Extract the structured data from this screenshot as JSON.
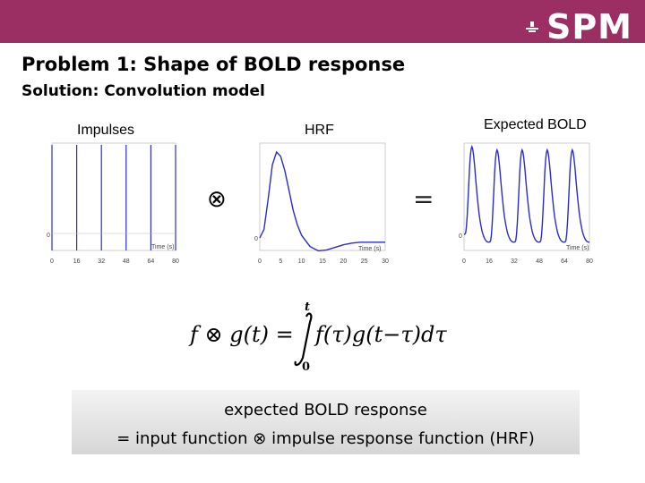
{
  "header": {
    "logo_text": "SPM",
    "accent_color": "#9b2f63"
  },
  "slide": {
    "title": "Problem 1: Shape of BOLD response",
    "subtitle": "Solution: Convolution model"
  },
  "panels": [
    {
      "label": "Impulses",
      "xlabel": "Time (s)",
      "y_zero_label": "0",
      "x_ticks": [
        "0",
        "16",
        "32",
        "48",
        "64",
        "80"
      ],
      "xlim": [
        0,
        80
      ],
      "impulse_times": [
        0,
        16,
        32,
        48,
        64,
        80
      ]
    },
    {
      "label": "HRF",
      "xlabel": "Time (s)",
      "y_zero_label": "0",
      "x_ticks": [
        "0",
        "5",
        "10",
        "15",
        "20",
        "25",
        "30"
      ],
      "xlim": [
        0,
        30
      ]
    },
    {
      "label": "Expected BOLD",
      "xlabel": "Time (s)",
      "y_zero_label": "0",
      "x_ticks": [
        "0",
        "16",
        "32",
        "48",
        "64",
        "80"
      ],
      "xlim": [
        0,
        80
      ]
    }
  ],
  "operators": {
    "convolve": "⊗",
    "equals": "="
  },
  "formula": {
    "lhs": "f ⊗ g(t) =",
    "upper_limit": "t",
    "lower_limit": "0",
    "integrand": "f(τ)g(t−τ)dτ"
  },
  "summary": {
    "line1": "expected BOLD response",
    "line2": "= input function ⊗ impulse response function (HRF)"
  },
  "chart_data": [
    {
      "type": "line",
      "xlabel": "Time (s)",
      "xlim": [
        0,
        80
      ],
      "impulses_at": [
        0,
        16,
        32,
        48,
        64,
        80
      ]
    },
    {
      "type": "line",
      "xlabel": "Time (s)",
      "xlim": [
        0,
        30
      ],
      "x": [
        0,
        1,
        2,
        3,
        4,
        5,
        6,
        7,
        8,
        9,
        10,
        12,
        14,
        16,
        18,
        20,
        22,
        24,
        26,
        28,
        30
      ],
      "y": [
        0.0,
        0.1,
        0.45,
        0.85,
        1.0,
        0.95,
        0.78,
        0.55,
        0.32,
        0.15,
        0.03,
        -0.1,
        -0.15,
        -0.14,
        -0.11,
        -0.08,
        -0.06,
        -0.05,
        -0.05,
        -0.05,
        -0.05
      ]
    },
    {
      "type": "line",
      "xlabel": "Time (s)",
      "xlim": [
        0,
        80
      ],
      "description_series": "periodic response with peaks after each impulse"
    }
  ]
}
